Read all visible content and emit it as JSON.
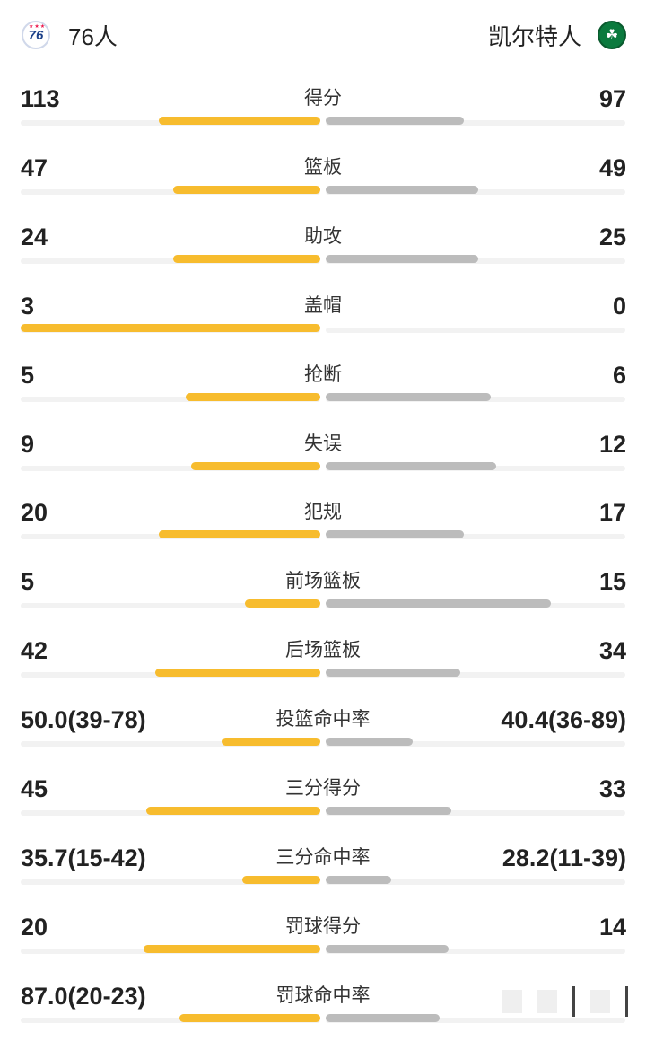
{
  "header": {
    "home_team": "76人",
    "away_team": "凯尔特人",
    "home_logo_icon": "76ers-logo-icon",
    "away_logo_icon": "celtics-logo-icon"
  },
  "colors": {
    "home_bar": "#f7bc2e",
    "away_bar": "#bcbcbc",
    "track": "#f2f2f2"
  },
  "stats": [
    {
      "label": "得分",
      "home": "113",
      "away": "97",
      "home_share": 0.54,
      "away_share": 0.46
    },
    {
      "label": "篮板",
      "home": "47",
      "away": "49",
      "home_share": 0.49,
      "away_share": 0.51
    },
    {
      "label": "助攻",
      "home": "24",
      "away": "25",
      "home_share": 0.49,
      "away_share": 0.51
    },
    {
      "label": "盖帽",
      "home": "3",
      "away": "0",
      "home_share": 1.0,
      "away_share": 0.0
    },
    {
      "label": "抢断",
      "home": "5",
      "away": "6",
      "home_share": 0.45,
      "away_share": 0.55
    },
    {
      "label": "失误",
      "home": "9",
      "away": "12",
      "home_share": 0.43,
      "away_share": 0.57
    },
    {
      "label": "犯规",
      "home": "20",
      "away": "17",
      "home_share": 0.54,
      "away_share": 0.46
    },
    {
      "label": "前场篮板",
      "home": "5",
      "away": "15",
      "home_share": 0.25,
      "away_share": 0.75
    },
    {
      "label": "后场篮板",
      "home": "42",
      "away": "34",
      "home_share": 0.55,
      "away_share": 0.45
    },
    {
      "label": "投篮命中率",
      "home": "50.0(39-78)",
      "away": "40.4(36-89)",
      "home_share": 0.33,
      "away_share": 0.29
    },
    {
      "label": "三分得分",
      "home": "45",
      "away": "33",
      "home_share": 0.58,
      "away_share": 0.42
    },
    {
      "label": "三分命中率",
      "home": "35.7(15-42)",
      "away": "28.2(11-39)",
      "home_share": 0.26,
      "away_share": 0.22
    },
    {
      "label": "罚球得分",
      "home": "20",
      "away": "14",
      "home_share": 0.59,
      "away_share": 0.41
    },
    {
      "label": "罚球命中率",
      "home": "87.0(20-23)",
      "away": "",
      "home_share": 0.47,
      "away_share": 0.38
    }
  ]
}
